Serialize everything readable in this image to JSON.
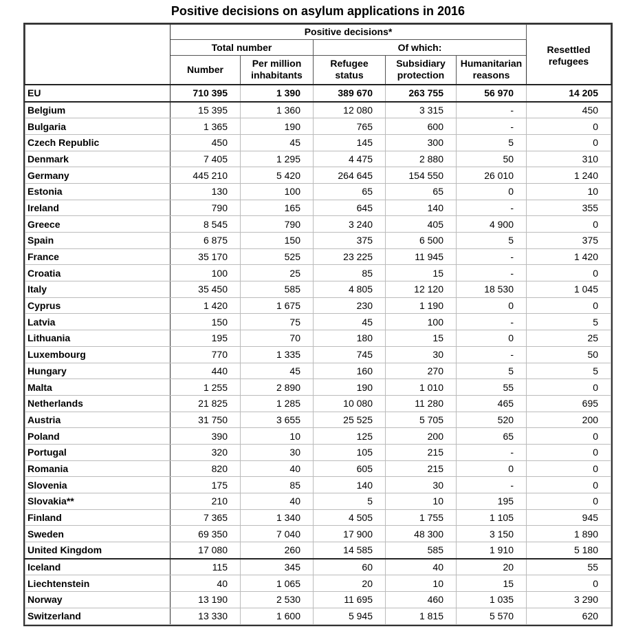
{
  "title": "Positive decisions on asylum applications in 2016",
  "headers": {
    "positive_decisions": "Positive decisions*",
    "total_number": "Total number",
    "of_which": "Of which:",
    "resettled": "Resettled refugees",
    "number": "Number",
    "per_million": "Per million inhabitants",
    "refugee_status": "Refugee status",
    "subsidiary": "Subsidiary protection",
    "humanitarian": "Humanitarian reasons"
  },
  "rows": [
    [
      "EU",
      "710 395",
      "1 390",
      "389 670",
      "263 755",
      "56 970",
      "14 205"
    ],
    [
      "Belgium",
      "15 395",
      "1 360",
      "12 080",
      "3 315",
      "-",
      "450"
    ],
    [
      "Bulgaria",
      "1 365",
      "190",
      "765",
      "600",
      "-",
      "0"
    ],
    [
      "Czech Republic",
      "450",
      "45",
      "145",
      "300",
      "5",
      "0"
    ],
    [
      "Denmark",
      "7 405",
      "1 295",
      "4 475",
      "2 880",
      "50",
      "310"
    ],
    [
      "Germany",
      "445 210",
      "5 420",
      "264 645",
      "154 550",
      "26 010",
      "1 240"
    ],
    [
      "Estonia",
      "130",
      "100",
      "65",
      "65",
      "0",
      "10"
    ],
    [
      "Ireland",
      "790",
      "165",
      "645",
      "140",
      "-",
      "355"
    ],
    [
      "Greece",
      "8 545",
      "790",
      "3 240",
      "405",
      "4 900",
      "0"
    ],
    [
      "Spain",
      "6 875",
      "150",
      "375",
      "6 500",
      "5",
      "375"
    ],
    [
      "France",
      "35 170",
      "525",
      "23 225",
      "11 945",
      "-",
      "1 420"
    ],
    [
      "Croatia",
      "100",
      "25",
      "85",
      "15",
      "-",
      "0"
    ],
    [
      "Italy",
      "35 450",
      "585",
      "4 805",
      "12 120",
      "18 530",
      "1 045"
    ],
    [
      "Cyprus",
      "1 420",
      "1 675",
      "230",
      "1 190",
      "0",
      "0"
    ],
    [
      "Latvia",
      "150",
      "75",
      "45",
      "100",
      "-",
      "5"
    ],
    [
      "Lithuania",
      "195",
      "70",
      "180",
      "15",
      "0",
      "25"
    ],
    [
      "Luxembourg",
      "770",
      "1 335",
      "745",
      "30",
      "-",
      "50"
    ],
    [
      "Hungary",
      "440",
      "45",
      "160",
      "270",
      "5",
      "5"
    ],
    [
      "Malta",
      "1 255",
      "2 890",
      "190",
      "1 010",
      "55",
      "0"
    ],
    [
      "Netherlands",
      "21 825",
      "1 285",
      "10 080",
      "11 280",
      "465",
      "695"
    ],
    [
      "Austria",
      "31 750",
      "3 655",
      "25 525",
      "5 705",
      "520",
      "200"
    ],
    [
      "Poland",
      "390",
      "10",
      "125",
      "200",
      "65",
      "0"
    ],
    [
      "Portugal",
      "320",
      "30",
      "105",
      "215",
      "-",
      "0"
    ],
    [
      "Romania",
      "820",
      "40",
      "605",
      "215",
      "0",
      "0"
    ],
    [
      "Slovenia",
      "175",
      "85",
      "140",
      "30",
      "-",
      "0"
    ],
    [
      "Slovakia**",
      "210",
      "40",
      "5",
      "10",
      "195",
      "0"
    ],
    [
      "Finland",
      "7 365",
      "1 340",
      "4 505",
      "1 755",
      "1 105",
      "945"
    ],
    [
      "Sweden",
      "69 350",
      "7 040",
      "17 900",
      "48 300",
      "3 150",
      "1 890"
    ],
    [
      "United Kingdom",
      "17 080",
      "260",
      "14 585",
      "585",
      "1 910",
      "5 180"
    ],
    [
      "Iceland",
      "115",
      "345",
      "60",
      "40",
      "20",
      "55"
    ],
    [
      "Liechtenstein",
      "40",
      "1 065",
      "20",
      "10",
      "15",
      "0"
    ],
    [
      "Norway",
      "13 190",
      "2 530",
      "11 695",
      "460",
      "1 035",
      "3 290"
    ],
    [
      "Switzerland",
      "13 330",
      "1 600",
      "5 945",
      "1 815",
      "5 570",
      "620"
    ]
  ]
}
